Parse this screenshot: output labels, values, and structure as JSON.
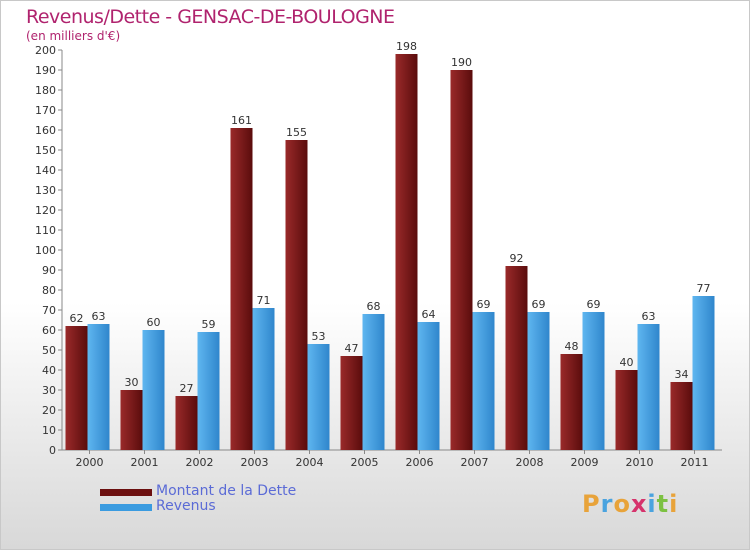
{
  "title": "Revenus/Dette - GENSAC-DE-BOULOGNE",
  "subtitle": "(en milliers d'€)",
  "chart_data": {
    "type": "bar",
    "categories": [
      "2000",
      "2001",
      "2002",
      "2003",
      "2004",
      "2005",
      "2006",
      "2007",
      "2008",
      "2009",
      "2010",
      "2011"
    ],
    "series": [
      {
        "name": "Montant de la Dette",
        "color": "#7a1a1a",
        "values": [
          62,
          30,
          27,
          161,
          155,
          47,
          198,
          190,
          92,
          48,
          40,
          34
        ]
      },
      {
        "name": "Revenus",
        "color": "#3a9be0",
        "values": [
          63,
          60,
          59,
          71,
          53,
          68,
          64,
          69,
          69,
          69,
          63,
          77
        ]
      }
    ],
    "ylim": [
      0,
      200
    ],
    "yticks": [
      0,
      10,
      20,
      30,
      40,
      50,
      60,
      70,
      80,
      90,
      100,
      110,
      120,
      130,
      140,
      150,
      160,
      170,
      180,
      190,
      200
    ],
    "grid": false,
    "legend_placement": "bottom-left"
  },
  "legend": {
    "items": [
      {
        "label": "Montant de la Dette",
        "color": "#6b0f0f"
      },
      {
        "label": "Revenus",
        "color": "#3a9be0"
      }
    ]
  },
  "logo": {
    "letters": [
      "P",
      "r",
      "o",
      "x",
      "i",
      "t",
      "i"
    ]
  }
}
